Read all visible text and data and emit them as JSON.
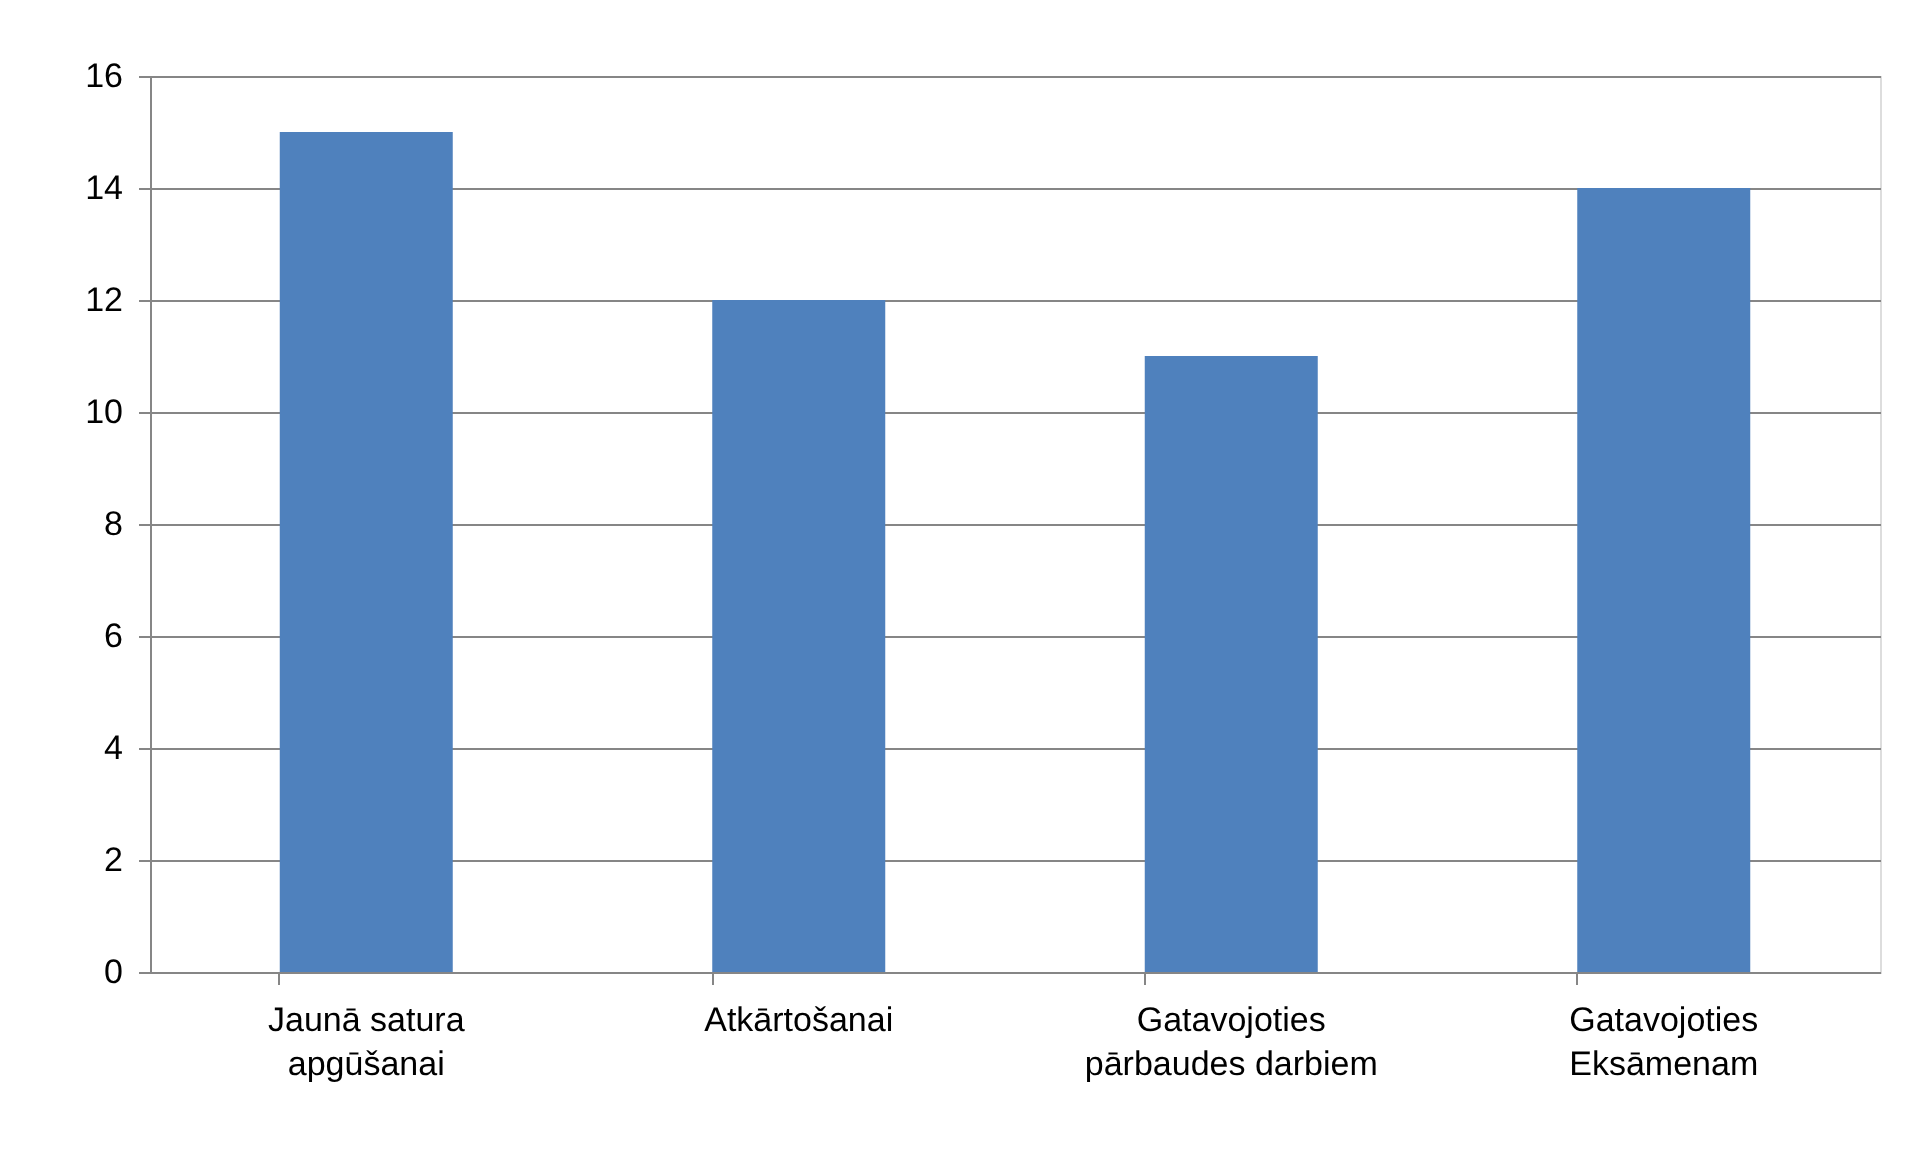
{
  "chart_data": {
    "type": "bar",
    "categories": [
      "Jaunā satura\napgūšanai",
      "Atkārtošanai",
      "Gatavojoties\npārbaudes darbiem",
      "Gatavojoties\nEksāmenam"
    ],
    "values": [
      15,
      12,
      11,
      14
    ],
    "color": "#4f81bd",
    "ylim": [
      0,
      16
    ],
    "yticks": [
      0,
      2,
      4,
      6,
      8,
      10,
      12,
      14,
      16
    ],
    "grid": "y"
  }
}
